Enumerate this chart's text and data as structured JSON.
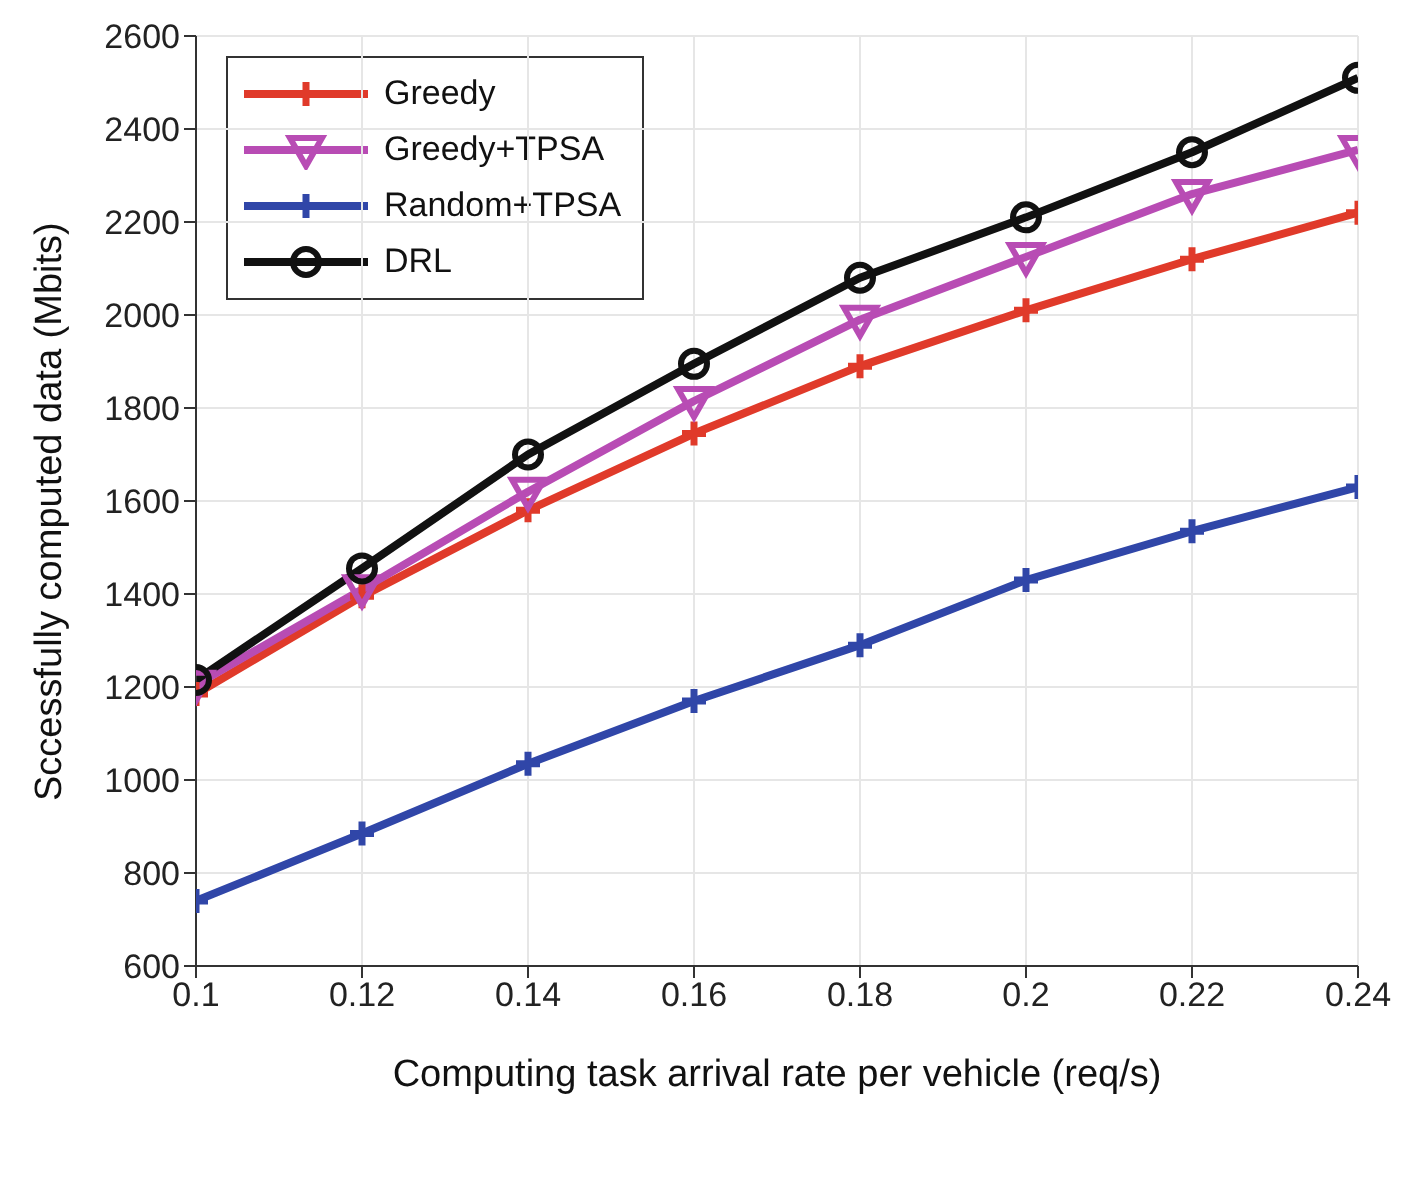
{
  "chart_data": {
    "type": "line",
    "xlabel": "Computing task arrival rate per vehicle (req/s)",
    "ylabel": "Sccessfully computed data (Mbits)",
    "x": [
      0.1,
      0.12,
      0.14,
      0.16,
      0.18,
      0.2,
      0.22,
      0.24
    ],
    "series": [
      {
        "name": "Greedy",
        "color": "#e03a2a",
        "marker": "cross",
        "values": [
          1185,
          1395,
          1580,
          1745,
          1890,
          2010,
          2120,
          2220
        ]
      },
      {
        "name": "Greedy+TPSA",
        "color": "#b84cb4",
        "marker": "triangle",
        "values": [
          1205,
          1410,
          1620,
          1815,
          1990,
          2125,
          2260,
          2355
        ]
      },
      {
        "name": "Random+TPSA",
        "color": "#3046a8",
        "marker": "cross",
        "values": [
          740,
          885,
          1035,
          1170,
          1290,
          1430,
          1535,
          1630
        ]
      },
      {
        "name": "DRL",
        "color": "#111111",
        "marker": "circle",
        "values": [
          1215,
          1455,
          1700,
          1895,
          2080,
          2210,
          2350,
          2510
        ]
      }
    ],
    "xlim": [
      0.1,
      0.24
    ],
    "xticks": [
      0.1,
      0.12,
      0.14,
      0.16,
      0.18,
      0.2,
      0.22,
      0.24
    ],
    "ylim": [
      600,
      2600
    ],
    "yticks": [
      600,
      800,
      1000,
      1200,
      1400,
      1600,
      1800,
      2000,
      2200,
      2400,
      2600
    ],
    "grid": true,
    "legend": "top left",
    "line_style": "solid"
  }
}
